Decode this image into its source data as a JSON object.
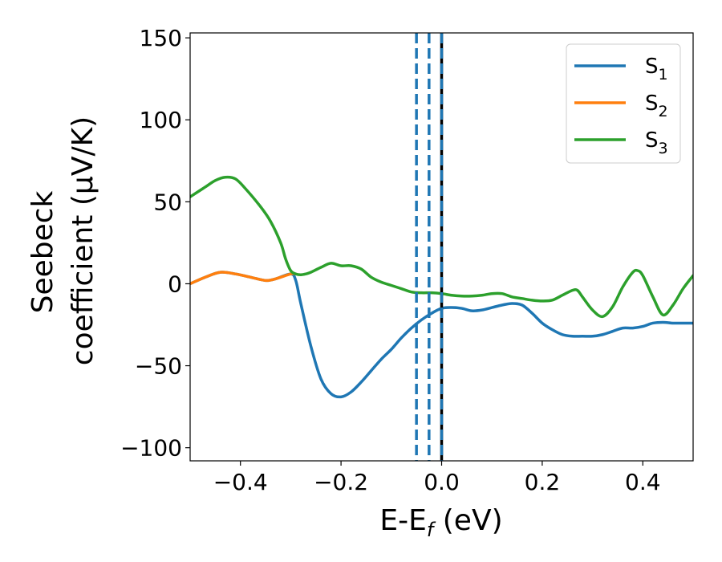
{
  "chart_data": {
    "type": "line",
    "title": "",
    "xlabel": "E-E",
    "xlabel_sub": "f",
    "xlabel_unit": " (eV)",
    "ylabel_line1": "Seebeck",
    "ylabel_line2": "coefficient  (μV/K)",
    "xlim": [
      -0.5,
      0.5
    ],
    "ylim": [
      -108,
      153
    ],
    "xticks": [
      -0.4,
      -0.2,
      0.0,
      0.2,
      0.4
    ],
    "xtick_labels": [
      "−0.4",
      "−0.2",
      "0.0",
      "0.2",
      "0.4"
    ],
    "yticks": [
      -100,
      -50,
      0,
      50,
      100,
      150
    ],
    "ytick_labels": [
      "−100",
      "−50",
      "0",
      "50",
      "100",
      "150"
    ],
    "grid": false,
    "legend_position": "top-right",
    "series": [
      {
        "name": "S",
        "name_sub": "1",
        "color": "#1f77b4",
        "x": [
          -0.5,
          -0.47,
          -0.44,
          -0.41,
          -0.38,
          -0.35,
          -0.33,
          -0.3,
          -0.29,
          -0.28,
          -0.26,
          -0.24,
          -0.22,
          -0.2,
          -0.18,
          -0.16,
          -0.14,
          -0.12,
          -0.1,
          -0.08,
          -0.06,
          -0.04,
          -0.02,
          0.0,
          0.02,
          0.04,
          0.06,
          0.08,
          0.1,
          0.12,
          0.14,
          0.16,
          0.18,
          0.2,
          0.22,
          0.24,
          0.26,
          0.28,
          0.3,
          0.32,
          0.34,
          0.36,
          0.38,
          0.4,
          0.42,
          0.44,
          0.46,
          0.48,
          0.5
        ],
        "values": [
          0,
          4,
          7,
          6,
          4,
          2,
          3,
          6,
          2,
          -12,
          -38,
          -58,
          -67,
          -69,
          -66,
          -60,
          -53,
          -46,
          -40,
          -33,
          -27,
          -22,
          -18,
          -15,
          -14.5,
          -15,
          -16.5,
          -16,
          -14.5,
          -13,
          -12,
          -13,
          -18,
          -24,
          -28,
          -31,
          -32,
          -32,
          -32,
          -31,
          -29,
          -27,
          -27,
          -26,
          -24,
          -23.5,
          -24,
          -24,
          -24
        ]
      },
      {
        "name": "S",
        "name_sub": "2",
        "color": "#ff7f0e",
        "x": [
          -0.5,
          -0.47,
          -0.44,
          -0.41,
          -0.38,
          -0.35,
          -0.33,
          -0.3,
          -0.29
        ],
        "values": [
          0,
          4,
          7,
          6,
          4,
          2,
          3,
          6,
          6
        ]
      },
      {
        "name": "S",
        "name_sub": "3",
        "color": "#2ca02c",
        "x": [
          -0.5,
          -0.47,
          -0.45,
          -0.43,
          -0.41,
          -0.39,
          -0.36,
          -0.34,
          -0.32,
          -0.31,
          -0.3,
          -0.29,
          -0.28,
          -0.27,
          -0.26,
          -0.24,
          -0.22,
          -0.2,
          -0.18,
          -0.16,
          -0.14,
          -0.12,
          -0.1,
          -0.08,
          -0.06,
          -0.04,
          -0.02,
          0.0,
          0.02,
          0.04,
          0.06,
          0.08,
          0.1,
          0.12,
          0.14,
          0.16,
          0.18,
          0.2,
          0.22,
          0.24,
          0.26,
          0.27,
          0.28,
          0.3,
          0.32,
          0.34,
          0.36,
          0.38,
          0.39,
          0.4,
          0.42,
          0.44,
          0.46,
          0.48,
          0.5
        ],
        "values": [
          53,
          59,
          63,
          65,
          64,
          58,
          47,
          38,
          25,
          15,
          8,
          6,
          5.5,
          6,
          7,
          10,
          12.5,
          11,
          11,
          9,
          4,
          1,
          -1,
          -3,
          -5,
          -5.5,
          -5.5,
          -6,
          -7,
          -7.5,
          -7.5,
          -7,
          -6,
          -6,
          -8,
          -9,
          -10,
          -10.5,
          -10,
          -7,
          -4,
          -4,
          -8,
          -16,
          -20,
          -14,
          -2,
          7,
          8,
          5,
          -8,
          -19,
          -13,
          -3,
          5
        ]
      }
    ],
    "vlines": [
      {
        "x": -0.05,
        "color": "#1f77b4",
        "style": "dashed"
      },
      {
        "x": -0.025,
        "color": "#1f77b4",
        "style": "dashed"
      },
      {
        "x": 0.0,
        "color": "#000000",
        "style": "solid"
      },
      {
        "x": 0.0,
        "color": "#1f77b4",
        "style": "dashed"
      }
    ]
  }
}
